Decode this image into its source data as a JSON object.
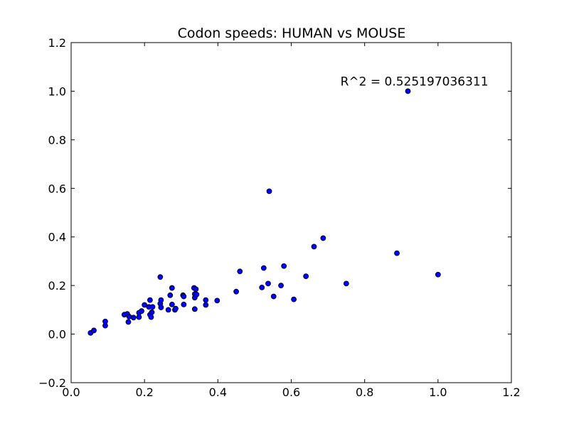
{
  "chart_data": {
    "type": "scatter",
    "title": "Codon speeds: HUMAN vs MOUSE",
    "xlabel": "",
    "ylabel": "",
    "xlim": [
      0.0,
      1.2
    ],
    "ylim": [
      -0.2,
      1.2
    ],
    "x_ticks": [
      "0.0",
      "0.2",
      "0.4",
      "0.6",
      "0.8",
      "1.0",
      "1.2"
    ],
    "y_ticks": [
      "−0.2",
      "0.0",
      "0.2",
      "0.4",
      "0.6",
      "0.8",
      "1.0",
      "1.2"
    ],
    "grid": false,
    "annotation": {
      "text": "R^2 = 0.525197036311",
      "x": 0.92,
      "y": 1.0
    },
    "colors": {
      "marker_fill": "#0000ff",
      "marker_edge": "#000000"
    },
    "points": [
      [
        0.053,
        0.005
      ],
      [
        0.062,
        0.015
      ],
      [
        0.093,
        0.035
      ],
      [
        0.093,
        0.052
      ],
      [
        0.145,
        0.08
      ],
      [
        0.153,
        0.083
      ],
      [
        0.156,
        0.05
      ],
      [
        0.158,
        0.072
      ],
      [
        0.17,
        0.068
      ],
      [
        0.185,
        0.088
      ],
      [
        0.185,
        0.07
      ],
      [
        0.192,
        0.095
      ],
      [
        0.2,
        0.12
      ],
      [
        0.212,
        0.112
      ],
      [
        0.215,
        0.14
      ],
      [
        0.215,
        0.08
      ],
      [
        0.218,
        0.07
      ],
      [
        0.22,
        0.09
      ],
      [
        0.222,
        0.112
      ],
      [
        0.243,
        0.235
      ],
      [
        0.243,
        0.125
      ],
      [
        0.245,
        0.11
      ],
      [
        0.245,
        0.14
      ],
      [
        0.265,
        0.1
      ],
      [
        0.27,
        0.16
      ],
      [
        0.275,
        0.19
      ],
      [
        0.275,
        0.122
      ],
      [
        0.283,
        0.1
      ],
      [
        0.285,
        0.105
      ],
      [
        0.305,
        0.16
      ],
      [
        0.307,
        0.155
      ],
      [
        0.307,
        0.122
      ],
      [
        0.335,
        0.19
      ],
      [
        0.337,
        0.165
      ],
      [
        0.337,
        0.15
      ],
      [
        0.337,
        0.103
      ],
      [
        0.34,
        0.185
      ],
      [
        0.342,
        0.163
      ],
      [
        0.367,
        0.14
      ],
      [
        0.367,
        0.12
      ],
      [
        0.398,
        0.138
      ],
      [
        0.45,
        0.175
      ],
      [
        0.46,
        0.258
      ],
      [
        0.52,
        0.192
      ],
      [
        0.525,
        0.272
      ],
      [
        0.537,
        0.208
      ],
      [
        0.54,
        0.588
      ],
      [
        0.552,
        0.155
      ],
      [
        0.572,
        0.2
      ],
      [
        0.58,
        0.28
      ],
      [
        0.607,
        0.143
      ],
      [
        0.64,
        0.238
      ],
      [
        0.662,
        0.36
      ],
      [
        0.687,
        0.395
      ],
      [
        0.75,
        0.208
      ],
      [
        0.888,
        0.333
      ],
      [
        0.918,
        1.0
      ],
      [
        1.0,
        0.245
      ]
    ]
  }
}
